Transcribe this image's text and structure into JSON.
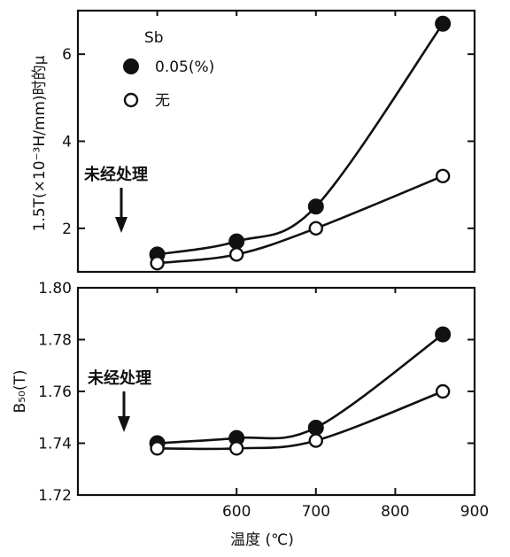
{
  "chart_data": [
    {
      "type": "line",
      "title": "",
      "ylabel": "1.5T(×10⁻³H/mm)时的μ",
      "xlabel": "",
      "xlim": [
        400,
        900
      ],
      "ylim": [
        1,
        7
      ],
      "y_ticks": [
        2,
        4,
        6
      ],
      "y_tick_labels": [
        "2",
        "4",
        "6"
      ],
      "grid": false,
      "legend": {
        "placement": "top-left",
        "title": "Sb",
        "entries": [
          "0.05(%)",
          "无"
        ]
      },
      "annotation": {
        "text": "未经处理",
        "points_to_x": 500
      },
      "series": [
        {
          "name": "0.05(%)",
          "marker": "filled-circle",
          "x": [
            500,
            600,
            700,
            860
          ],
          "y": [
            1.4,
            1.7,
            2.5,
            6.7
          ]
        },
        {
          "name": "无",
          "marker": "open-circle",
          "x": [
            500,
            600,
            700,
            860
          ],
          "y": [
            1.2,
            1.4,
            2.0,
            3.2
          ]
        }
      ]
    },
    {
      "type": "line",
      "title": "",
      "ylabel": "B₅₀(T)",
      "xlabel": "温度 (℃)",
      "xlim": [
        400,
        900
      ],
      "ylim": [
        1.72,
        1.8
      ],
      "x_ticks": [
        600,
        700,
        800,
        900
      ],
      "x_tick_labels": [
        "600",
        "700",
        "800",
        "900"
      ],
      "y_ticks": [
        1.72,
        1.74,
        1.76,
        1.78,
        1.8
      ],
      "y_tick_labels": [
        "1.72",
        "1.74",
        "1.76",
        "1.78",
        "1.80"
      ],
      "grid": false,
      "annotation": {
        "text": "未经处理",
        "points_to_x": 500
      },
      "series": [
        {
          "name": "0.05(%)",
          "marker": "filled-circle",
          "x": [
            500,
            600,
            700,
            860
          ],
          "y": [
            1.74,
            1.742,
            1.746,
            1.782
          ]
        },
        {
          "name": "无",
          "marker": "open-circle",
          "x": [
            500,
            600,
            700,
            860
          ],
          "y": [
            1.738,
            1.738,
            1.741,
            1.76
          ]
        }
      ]
    }
  ]
}
